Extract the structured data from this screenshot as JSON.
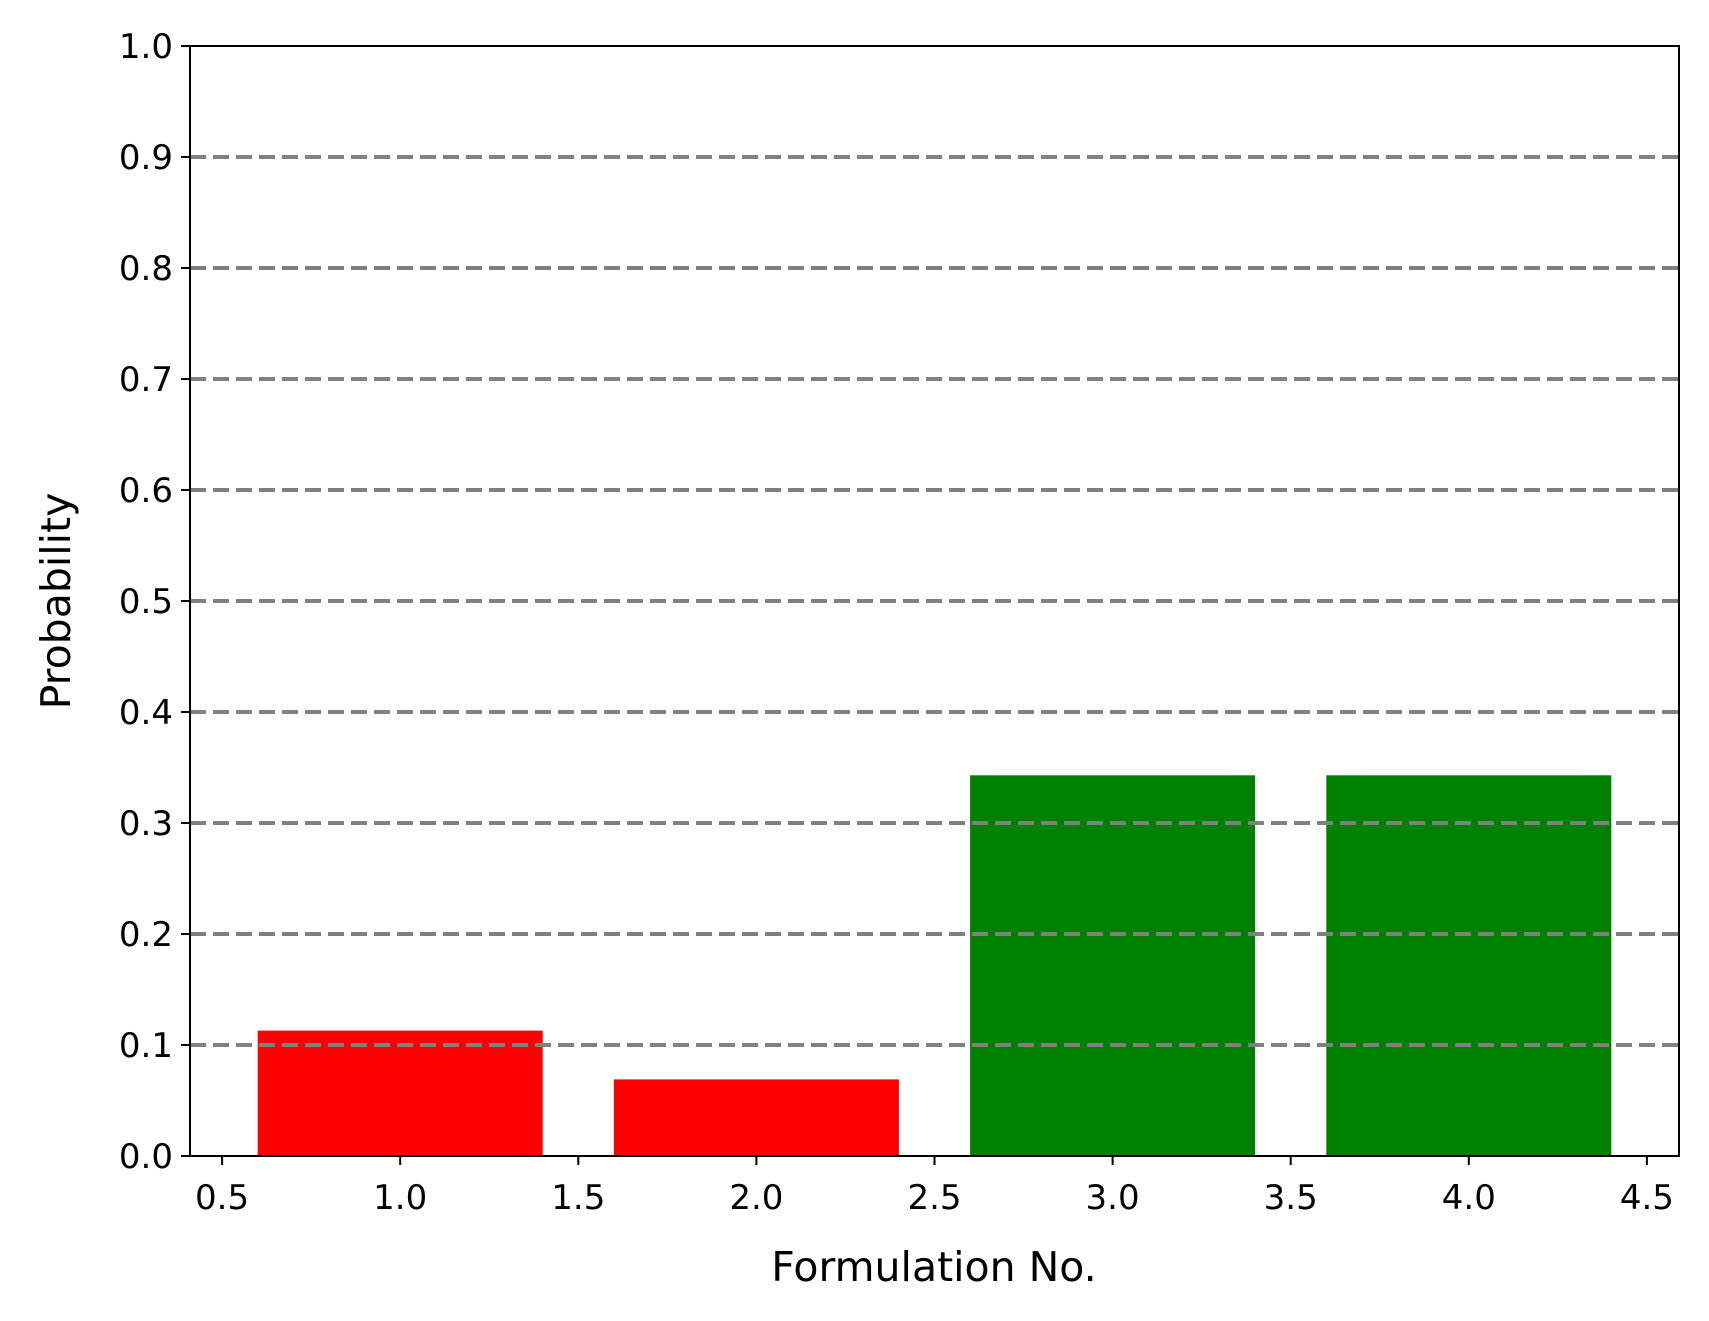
{
  "chart_data": {
    "type": "bar",
    "title": "",
    "xlabel": "Formulation No.",
    "ylabel": "Probability",
    "x": [
      1,
      2,
      3,
      4
    ],
    "values": [
      0.113,
      0.069,
      0.343,
      0.343
    ],
    "bar_width": 0.8,
    "colors": [
      "#ff0000",
      "#ff0000",
      "#008000",
      "#008000"
    ],
    "xlim": [
      0.41,
      4.59
    ],
    "ylim": [
      0.0,
      1.0
    ],
    "xticks": [
      0.5,
      1.0,
      1.5,
      2.0,
      2.5,
      3.0,
      3.5,
      4.0,
      4.5
    ],
    "xtick_labels": [
      "0.5",
      "1.0",
      "1.5",
      "2.0",
      "2.5",
      "3.0",
      "3.5",
      "4.0",
      "4.5"
    ],
    "yticks": [
      0.0,
      0.1,
      0.2,
      0.3,
      0.4,
      0.5,
      0.6,
      0.7,
      0.8,
      0.9,
      1.0
    ],
    "ytick_labels": [
      "0.0",
      "0.1",
      "0.2",
      "0.3",
      "0.4",
      "0.5",
      "0.6",
      "0.7",
      "0.8",
      "0.9",
      "1.0"
    ],
    "grid": {
      "axis": "y",
      "style": "dashed",
      "color": "#808080",
      "drawn_over_bars": true
    },
    "legend": "none"
  }
}
